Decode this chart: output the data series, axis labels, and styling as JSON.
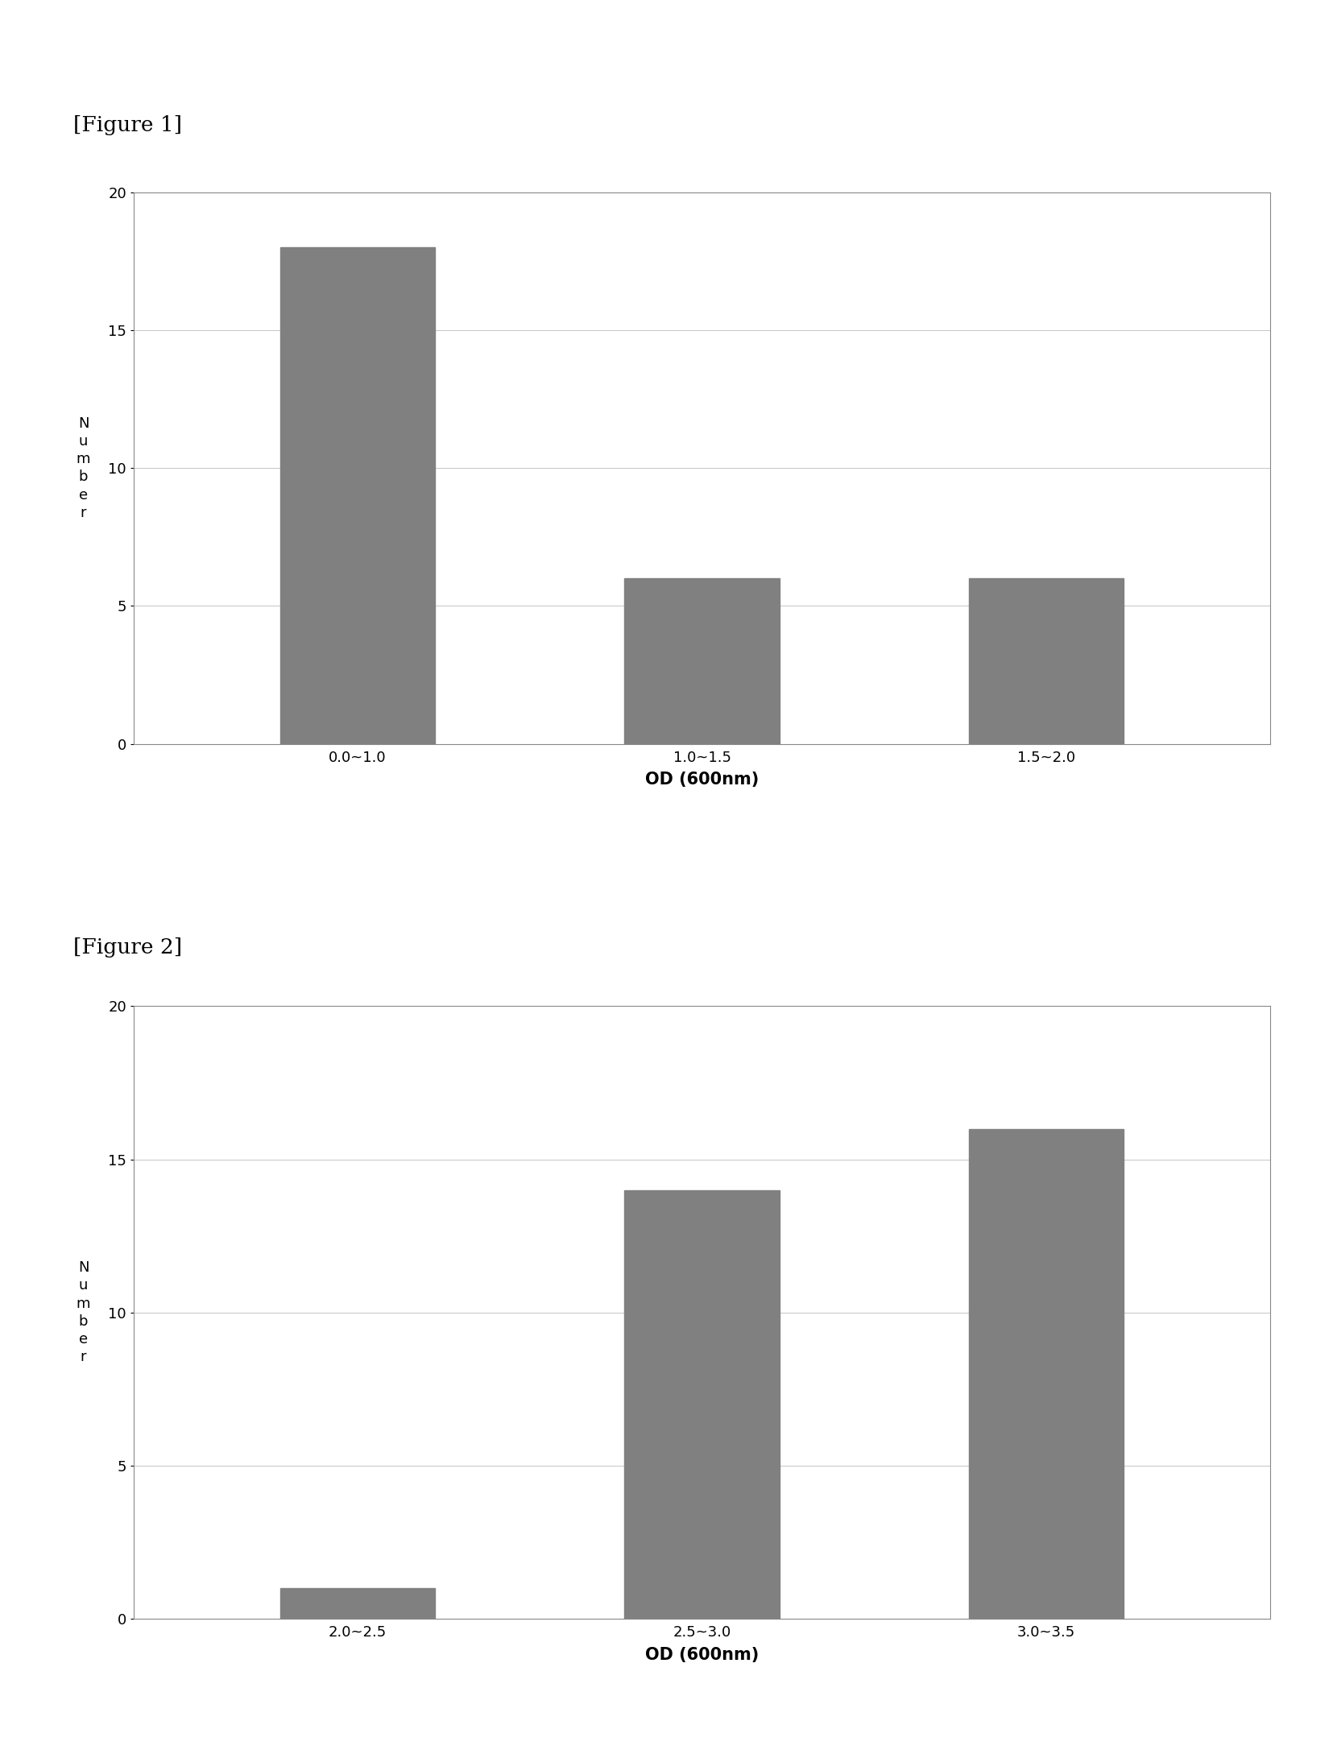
{
  "fig1": {
    "label": "[Figure 1]",
    "categories": [
      "0.0~1.0",
      "1.0~1.5",
      "1.5~2.0"
    ],
    "values": [
      18,
      6,
      6
    ],
    "xlabel": "OD (600nm)",
    "ylabel": "N\nu\nm\nb\ne\nr",
    "ylim": [
      0,
      20
    ],
    "yticks": [
      0,
      5,
      10,
      15,
      20
    ],
    "bar_color": "#808080",
    "bar_width": 0.45
  },
  "fig2": {
    "label": "[Figure 2]",
    "categories": [
      "2.0~2.5",
      "2.5~3.0",
      "3.0~3.5"
    ],
    "values": [
      1,
      14,
      16
    ],
    "xlabel": "OD (600nm)",
    "ylabel": "N\nu\nm\nb\ne\nr",
    "ylim": [
      0,
      20
    ],
    "yticks": [
      0,
      5,
      10,
      15,
      20
    ],
    "bar_color": "#808080",
    "bar_width": 0.45
  },
  "background_color": "#ffffff",
  "page_background": "#ffffff",
  "grid_color": "#bbbbbb",
  "grid_linestyle": "-",
  "grid_linewidth": 0.6,
  "axis_label_fontsize": 15,
  "tick_fontsize": 13,
  "ylabel_fontsize": 13,
  "figure_label_fontsize": 19,
  "box_color": "#888888"
}
